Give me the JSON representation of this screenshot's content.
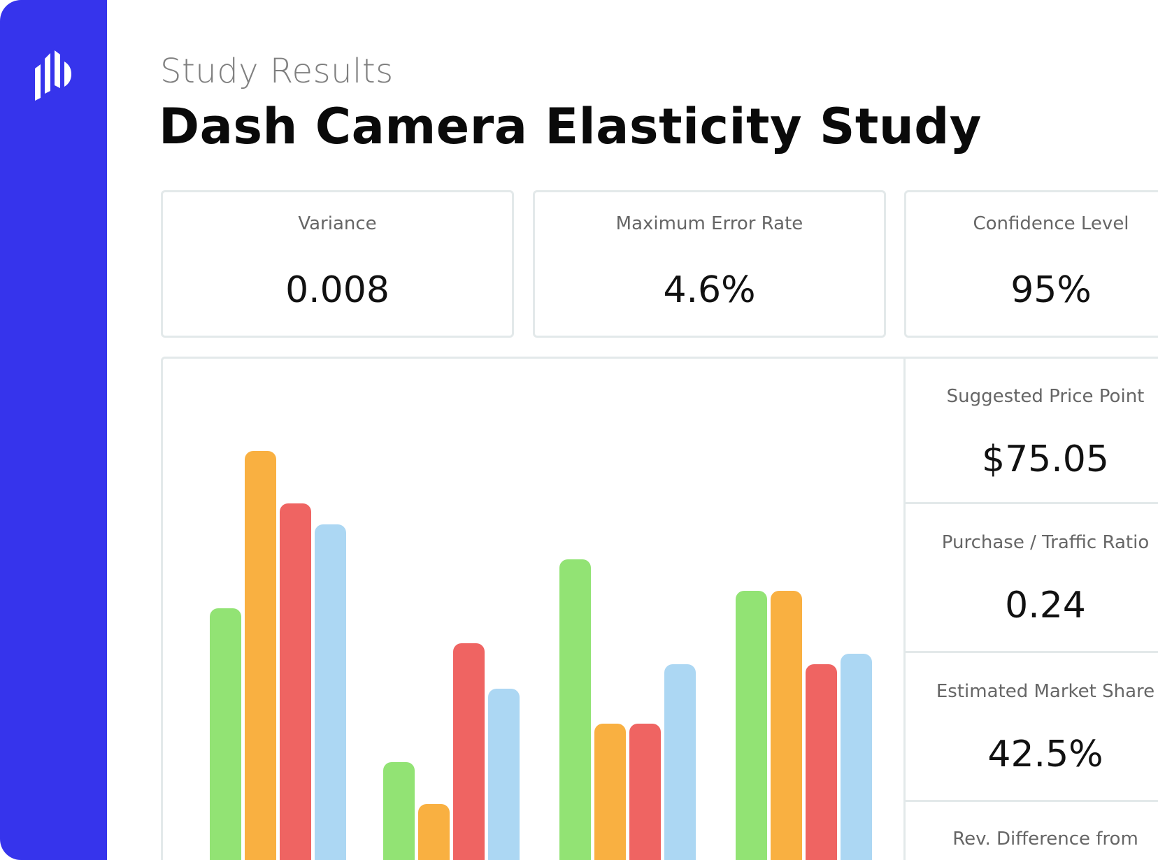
{
  "header": {
    "subtitle": "Study Results",
    "title": "Dash Camera Elasticity Study"
  },
  "stats": [
    {
      "label": "Variance",
      "value": "0.008"
    },
    {
      "label": "Maximum Error Rate",
      "value": "4.6%"
    },
    {
      "label": "Confidence Level",
      "value": "95%"
    }
  ],
  "metrics": [
    {
      "label": "Suggested Price Point",
      "value": "$75.05"
    },
    {
      "label": "Purchase / Traffic Ratio",
      "value": "0.24"
    },
    {
      "label": "Estimated Market Share",
      "value": "42.5%"
    },
    {
      "label": "Rev. Difference from",
      "value": ""
    }
  ],
  "colors": {
    "sidebar": "#3634ec",
    "series": [
      "#92e374",
      "#f9b041",
      "#ef6462",
      "#acd7f3"
    ]
  },
  "icons": {
    "logo": "bar-logo-icon"
  },
  "chart_data": {
    "type": "bar",
    "categories": [
      "",
      "",
      "",
      ""
    ],
    "series": [
      {
        "values": [
          72,
          28,
          86,
          77
        ]
      },
      {
        "values": [
          117,
          16,
          39,
          77
        ]
      },
      {
        "values": [
          102,
          62,
          39,
          56
        ]
      },
      {
        "values": [
          96,
          49,
          56,
          59
        ]
      }
    ],
    "ylim": [
      0,
      130
    ],
    "grid": false,
    "legend": "none"
  }
}
